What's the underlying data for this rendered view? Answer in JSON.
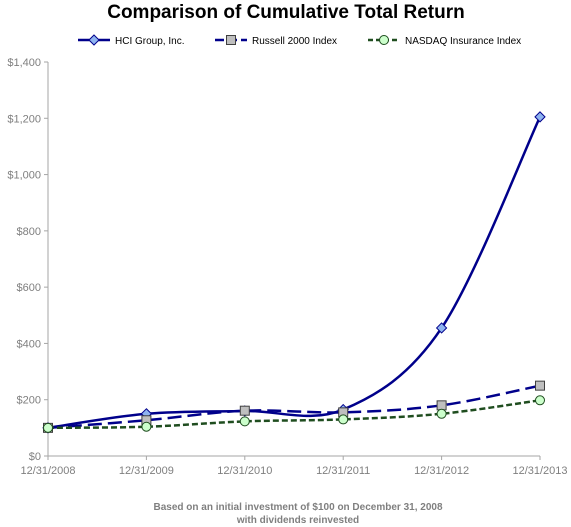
{
  "chart_data": {
    "type": "line",
    "title": "Comparison of Cumulative Total Return",
    "categories": [
      "12/31/2008",
      "12/31/2009",
      "12/31/2010",
      "12/31/2011",
      "12/31/2012",
      "12/31/2013"
    ],
    "series": [
      {
        "name": "HCI Group, Inc.",
        "values": [
          100,
          150,
          160,
          165,
          455,
          1205
        ],
        "color": "#00008b",
        "marker": "diamond",
        "marker_fill": "#8fb4f0",
        "line": "solid"
      },
      {
        "name": "Russell 2000 Index",
        "values": [
          100,
          127,
          161,
          155,
          180,
          250
        ],
        "color": "#00008b",
        "marker": "square",
        "marker_fill": "#bfbfbf",
        "line": "dashed"
      },
      {
        "name": "NASDAQ Insurance Index",
        "values": [
          100,
          104,
          123,
          130,
          150,
          198
        ],
        "color": "#1f4d1f",
        "marker": "circle",
        "marker_fill": "#ccffcc",
        "line": "dashed"
      }
    ],
    "ylim": [
      0,
      1400
    ],
    "yticks": [
      0,
      200,
      400,
      600,
      800,
      1000,
      1200,
      1400
    ],
    "ytick_labels": [
      "$0",
      "$200",
      "$400",
      "$600",
      "$800",
      "$1,000",
      "$1,200",
      "$1,400"
    ],
    "legend_position": "top",
    "grid": false
  },
  "footnote": {
    "line1": "Based on an initial investment of $100 on December 31, 2008",
    "line2": "with dividends reinvested"
  }
}
